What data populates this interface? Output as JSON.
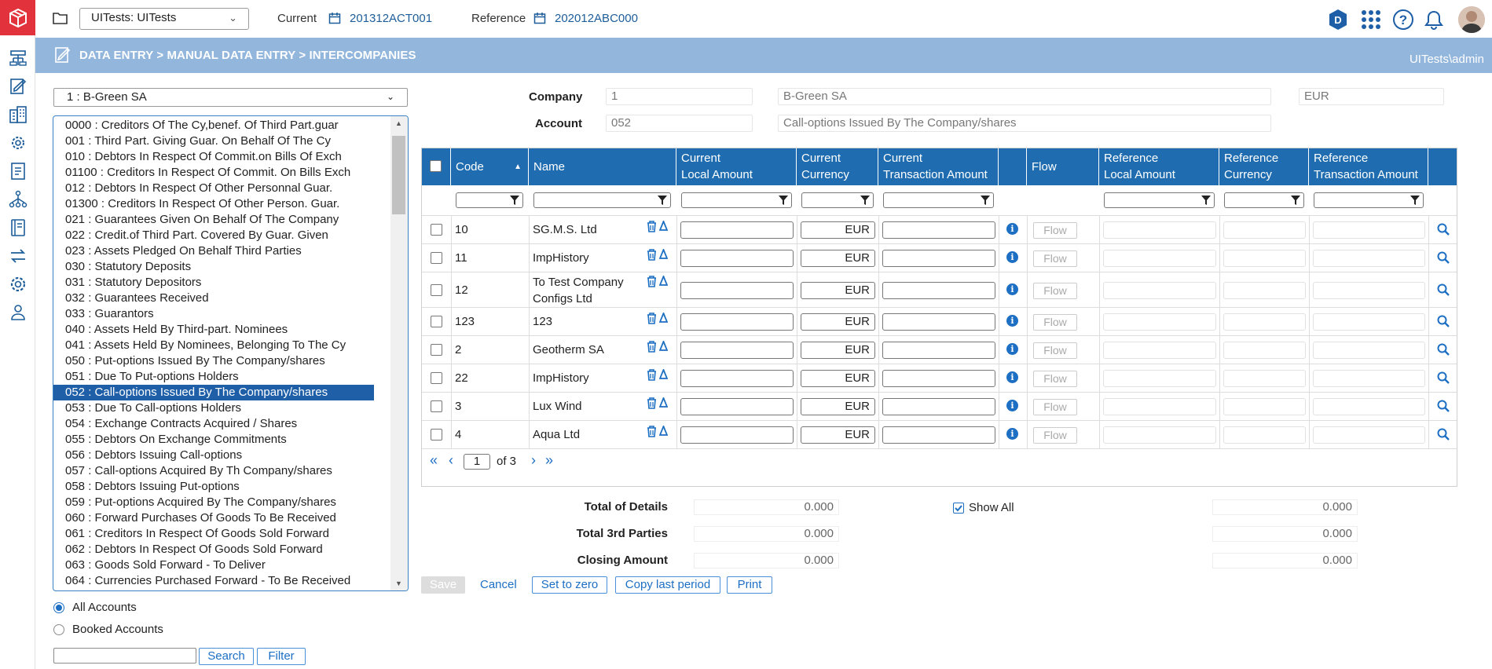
{
  "app": {
    "environment": "UITests: UITests",
    "current_label": "Current",
    "current_value": "201312ACT001",
    "reference_label": "Reference",
    "reference_value": "202012ABC000",
    "breadcrumb": "DATA ENTRY > MANUAL DATA ENTRY > INTERCOMPANIES",
    "user": "UITests\\admin",
    "accent": "#1f6db0",
    "brand": "#e2333d"
  },
  "left": {
    "company_select": "1 : B-Green SA",
    "accounts": [
      "0000 : Creditors Of The Cy,benef. Of Third Part.guar",
      "001 : Third Part. Giving Guar. On Behalf Of The Cy",
      "010 : Debtors In Respect Of Commit.on Bills Of Exch",
      "01100 : Creditors In Respect Of Commit. On Bills Exch",
      "012 : Debtors In Respect Of Other Personnal Guar.",
      "01300 : Creditors In Respect Of Other Person. Guar.",
      "021 : Guarantees Given On Behalf Of The Company",
      "022 : Credit.of Third Part. Covered By Guar. Given",
      "023 : Assets Pledged On Behalf Third Parties",
      "030 : Statutory Deposits",
      "031 : Statutory Depositors",
      "032 : Guarantees Received",
      "033 : Guarantors",
      "040 : Assets Held By Third-part. Nominees",
      "041 : Assets Held By Nominees, Belonging To The Cy",
      "050 : Put-options Issued By The Company/shares",
      "051 : Due To Put-options Holders",
      "052 : Call-options Issued By The Company/shares",
      "053 : Due To Call-options Holders",
      "054 : Exchange Contracts Acquired / Shares",
      "055 : Debtors On Exchange Commitments",
      "056 : Debtors Issuing Call-options",
      "057 : Call-options Acquired By Th Company/shares",
      "058 : Debtors Issuing Put-options",
      "059 : Put-options Acquired By The Company/shares",
      "060 : Forward Purchases Of Goods To Be Received",
      "061 : Creditors In Respect Of Goods Sold Forward",
      "062 : Debtors In Respect Of Goods Sold Forward",
      "063 : Goods Sold Forward - To Deliver",
      "064 : Currencies Purchased Forward - To Be Received"
    ],
    "selected_index": 17,
    "radio_all": "All Accounts",
    "radio_booked": "Booked Accounts",
    "search_btn": "Search",
    "filter_btn": "Filter"
  },
  "form": {
    "company_label": "Company",
    "company_code": "1",
    "company_name": "B-Green SA",
    "company_currency": "EUR",
    "account_label": "Account",
    "account_code": "052",
    "account_name": "Call-options Issued By The Company/shares"
  },
  "grid": {
    "headers": {
      "code": "Code",
      "name": "Name",
      "cur_local_1": "Current",
      "cur_local_2": "Local Amount",
      "cur_ccy_1": "Current",
      "cur_ccy_2": "Currency",
      "cur_trans_1": "Current",
      "cur_trans_2": "Transaction Amount",
      "flow": "Flow",
      "ref_local_1": "Reference",
      "ref_local_2": "Local Amount",
      "ref_ccy_1": "Reference",
      "ref_ccy_2": "Currency",
      "ref_trans_1": "Reference",
      "ref_trans_2": "Transaction Amount"
    },
    "rows": [
      {
        "code": "10",
        "name": "SG.M.S. Ltd",
        "currency": "EUR",
        "flow": "Flow"
      },
      {
        "code": "11",
        "name": "ImpHistory",
        "currency": "EUR",
        "flow": "Flow"
      },
      {
        "code": "12",
        "name": "To Test Company Configs Ltd",
        "currency": "EUR",
        "flow": "Flow"
      },
      {
        "code": "123",
        "name": "123",
        "currency": "EUR",
        "flow": "Flow"
      },
      {
        "code": "2",
        "name": "Geotherm SA",
        "currency": "EUR",
        "flow": "Flow"
      },
      {
        "code": "22",
        "name": "ImpHistory",
        "currency": "EUR",
        "flow": "Flow"
      },
      {
        "code": "3",
        "name": "Lux Wind",
        "currency": "EUR",
        "flow": "Flow"
      },
      {
        "code": "4",
        "name": "Aqua Ltd",
        "currency": "EUR",
        "flow": "Flow"
      }
    ],
    "pager": {
      "page": "1",
      "of_text": "of 3"
    }
  },
  "totals": {
    "details_label": "Total of Details",
    "details_cur": "0.000",
    "details_ref": "0.000",
    "third_label": "Total 3rd Parties",
    "third_cur": "0.000",
    "third_ref": "0.000",
    "closing_label": "Closing Amount",
    "closing_cur": "0.000",
    "closing_ref": "0.000",
    "show_all": "Show All"
  },
  "actions": {
    "save": "Save",
    "cancel": "Cancel",
    "set_zero": "Set to zero",
    "copy_last": "Copy last period",
    "print": "Print"
  }
}
